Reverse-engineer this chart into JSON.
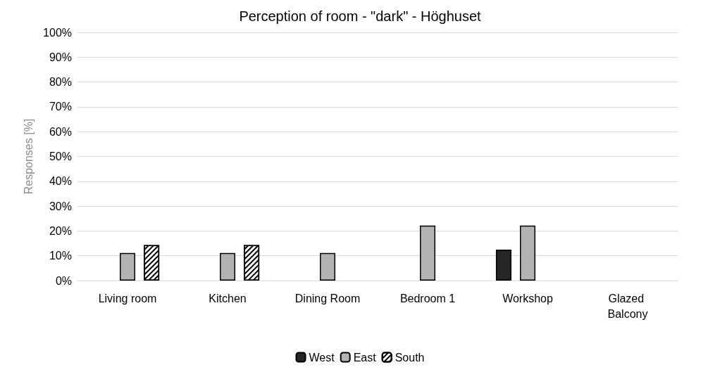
{
  "chart_data": {
    "type": "bar",
    "title": "Perception of room - \"dark\" - Höghuset",
    "ylabel": "Responses [%]",
    "categories": [
      "Living room",
      "Kitchen",
      "Dining Room",
      "Bedroom 1",
      "Workshop",
      "Glazed Balcony"
    ],
    "series": [
      {
        "name": "West",
        "color": "#262626",
        "values": [
          null,
          null,
          null,
          null,
          12.5,
          null
        ]
      },
      {
        "name": "East",
        "color": "#b3b3b3",
        "values": [
          11.1,
          11.1,
          11.1,
          22.2,
          22.2,
          null
        ]
      },
      {
        "name": "South",
        "color": "#000000",
        "values": [
          14.3,
          14.3,
          null,
          null,
          null,
          null
        ]
      }
    ],
    "ylim": [
      0,
      100
    ],
    "yticks": [
      {
        "value": 0,
        "label": "0%"
      },
      {
        "value": 10,
        "label": "10%"
      },
      {
        "value": 20,
        "label": "20%"
      },
      {
        "value": 30,
        "label": "30%"
      },
      {
        "value": 40,
        "label": "40%"
      },
      {
        "value": 50,
        "label": "50%"
      },
      {
        "value": 60,
        "label": "60%"
      },
      {
        "value": 70,
        "label": "70%"
      },
      {
        "value": 80,
        "label": "80%"
      },
      {
        "value": 90,
        "label": "90%"
      },
      {
        "value": 100,
        "label": "100%"
      }
    ],
    "grid": "y",
    "legend": "bottom"
  }
}
